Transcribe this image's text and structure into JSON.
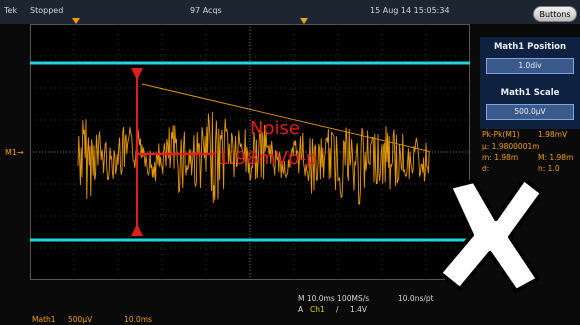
{
  "status_bar": {
    "brand": "Tek",
    "run_state": "Stopped",
    "acquisitions": "97 Acqs",
    "datetime": "15 Aug 14 15:05:34",
    "buttons_label": "Buttons"
  },
  "side_menu": {
    "position_title": "Math1 Position",
    "position_value": "1.0div",
    "scale_title": "Math1 Scale",
    "scale_value": "500.0μV"
  },
  "measurements": {
    "pkpk_label": "Pk-Pk(M1)",
    "pkpk_value": "1.98mV",
    "mean_label": "μ: 1.9800001m",
    "min_label": "m: 1.98m",
    "max_label": "M: 1.98m",
    "sigma_label": "σ:",
    "count_label": "n: 1.0"
  },
  "channel_marker": "M1",
  "bottom_bar": {
    "math_label": "Math1",
    "math_scale": "500μV",
    "math_time": "10.0ms",
    "horizontal": "M 10.0ms 100MS/s",
    "sample": "10.0ns/pt",
    "trigger_source_prefix": "A",
    "trigger_source": "Ch1",
    "trigger_slope": "/",
    "trigger_level": "1.4V"
  },
  "annotation": {
    "line1": "Noise",
    "line2": "1.98mVp-p"
  },
  "colors": {
    "trace": "#f2a007",
    "cursor": "#22d4dc",
    "annotation": "#e01e1e",
    "panel": "#0e2140"
  }
}
